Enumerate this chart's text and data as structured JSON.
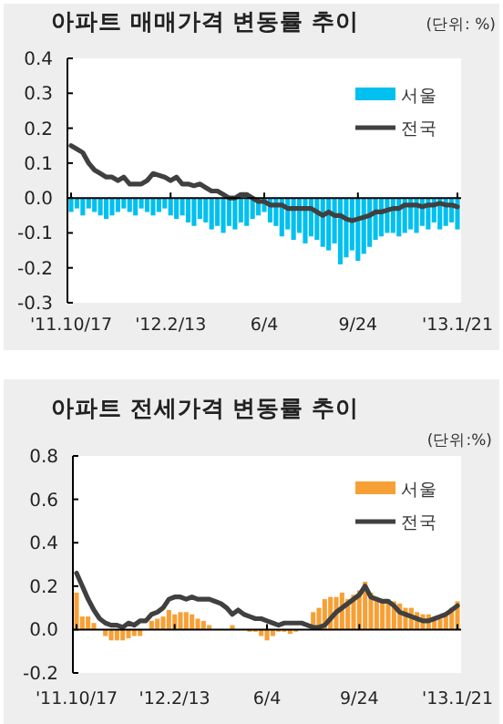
{
  "chart_data": [
    {
      "type": "bar",
      "title": "아파트 매매가격 변동률 추이",
      "annotations": [
        "(단위: %)"
      ],
      "categories": [
        "'11.10/17",
        null,
        null,
        null,
        null,
        null,
        null,
        null,
        null,
        null,
        null,
        null,
        null,
        null,
        null,
        null,
        null,
        "'12.2/13",
        null,
        null,
        null,
        null,
        null,
        null,
        null,
        null,
        null,
        null,
        null,
        null,
        null,
        null,
        null,
        "6/4",
        null,
        null,
        null,
        null,
        null,
        null,
        null,
        null,
        null,
        null,
        null,
        null,
        null,
        null,
        null,
        "9/24",
        null,
        null,
        null,
        null,
        null,
        null,
        null,
        null,
        null,
        null,
        null,
        null,
        null,
        null,
        null,
        null,
        "'13.1/21"
      ],
      "series": [
        {
          "name": "서울",
          "color": "#00c0f0",
          "values": [
            -0.04,
            -0.03,
            -0.05,
            -0.03,
            -0.04,
            -0.05,
            -0.06,
            -0.05,
            -0.04,
            -0.03,
            -0.04,
            -0.05,
            -0.03,
            -0.04,
            -0.05,
            -0.04,
            -0.03,
            -0.05,
            -0.06,
            -0.05,
            -0.07,
            -0.08,
            -0.06,
            -0.07,
            -0.09,
            -0.08,
            -0.1,
            -0.08,
            -0.09,
            -0.07,
            -0.08,
            -0.06,
            -0.05,
            -0.04,
            -0.07,
            -0.08,
            -0.11,
            -0.09,
            -0.12,
            -0.1,
            -0.13,
            -0.11,
            -0.12,
            -0.14,
            -0.15,
            -0.13,
            -0.19,
            -0.17,
            -0.15,
            -0.18,
            -0.16,
            -0.14,
            -0.12,
            -0.11,
            -0.1,
            -0.1,
            -0.11,
            -0.1,
            -0.09,
            -0.1,
            -0.08,
            -0.09,
            -0.07,
            -0.09,
            -0.08,
            -0.07,
            -0.09
          ]
        },
        {
          "name": "전국",
          "type": "line",
          "color": "#404040",
          "values": [
            0.15,
            0.14,
            0.13,
            0.1,
            0.08,
            0.07,
            0.06,
            0.06,
            0.05,
            0.06,
            0.04,
            0.04,
            0.04,
            0.05,
            0.07,
            0.065,
            0.06,
            0.05,
            0.06,
            0.04,
            0.04,
            0.035,
            0.04,
            0.03,
            0.02,
            0.02,
            0.01,
            0.0,
            0.0,
            0.01,
            0.01,
            0.0,
            -0.01,
            -0.01,
            -0.02,
            -0.02,
            -0.02,
            -0.03,
            -0.03,
            -0.03,
            -0.03,
            -0.03,
            -0.04,
            -0.05,
            -0.04,
            -0.05,
            -0.05,
            -0.06,
            -0.065,
            -0.06,
            -0.055,
            -0.05,
            -0.04,
            -0.04,
            -0.035,
            -0.03,
            -0.03,
            -0.02,
            -0.02,
            -0.02,
            -0.025,
            -0.02,
            -0.02,
            -0.015,
            -0.02,
            -0.02,
            -0.025
          ]
        }
      ],
      "ylim": [
        -0.3,
        0.4
      ],
      "yticks": [
        {
          "value": 0.4,
          "label": "0.4"
        },
        {
          "value": 0.3,
          "label": "0.3"
        },
        {
          "value": 0.2,
          "label": "0.2"
        },
        {
          "value": 0.1,
          "label": "0.1"
        },
        {
          "value": 0,
          "label": "0.0"
        },
        {
          "value": -0.1,
          "label": "-0.1"
        },
        {
          "value": -0.2,
          "label": "-0.2"
        },
        {
          "value": -0.3,
          "label": "-0.3"
        }
      ],
      "legend": "top right",
      "line_style": "solid"
    },
    {
      "type": "bar",
      "title": "아파트 전세가격 변동률 추이",
      "annotations": [
        "(단위:%)"
      ],
      "categories": [
        "'11.10/17",
        null,
        null,
        null,
        null,
        null,
        null,
        null,
        null,
        null,
        null,
        null,
        null,
        null,
        null,
        null,
        null,
        "'12.2/13",
        null,
        null,
        null,
        null,
        null,
        null,
        null,
        null,
        null,
        null,
        null,
        null,
        null,
        null,
        null,
        "6/4",
        null,
        null,
        null,
        null,
        null,
        null,
        null,
        null,
        null,
        null,
        null,
        null,
        null,
        null,
        null,
        "9/24",
        null,
        null,
        null,
        null,
        null,
        null,
        null,
        null,
        null,
        null,
        null,
        null,
        null,
        null,
        null,
        null,
        "'13.1/21"
      ],
      "series": [
        {
          "name": "서울",
          "color": "#f7a035",
          "values": [
            0.17,
            0.06,
            0.06,
            0.03,
            0.0,
            -0.03,
            -0.05,
            -0.05,
            -0.05,
            -0.04,
            -0.03,
            -0.03,
            0.0,
            0.04,
            0.05,
            0.06,
            0.09,
            0.07,
            0.08,
            0.08,
            0.07,
            0.05,
            0.04,
            0.02,
            null,
            0.0,
            null,
            0.02,
            0.0,
            0.0,
            -0.01,
            -0.01,
            -0.03,
            -0.05,
            -0.03,
            -0.01,
            -0.01,
            -0.02,
            -0.01,
            0.0,
            null,
            0.08,
            0.1,
            0.14,
            0.15,
            0.15,
            0.17,
            0.14,
            0.16,
            0.18,
            0.22,
            0.17,
            0.15,
            0.14,
            0.14,
            0.13,
            0.12,
            0.1,
            0.1,
            0.08,
            0.07,
            0.07,
            0.05,
            0.05,
            0.06,
            0.1,
            0.13
          ]
        },
        {
          "name": "전국",
          "type": "line",
          "color": "#404040",
          "values": [
            0.26,
            0.2,
            0.14,
            0.09,
            0.05,
            0.03,
            0.02,
            0.02,
            0.01,
            0.03,
            0.02,
            0.04,
            0.04,
            0.07,
            0.08,
            0.1,
            0.14,
            0.15,
            0.15,
            0.14,
            0.15,
            0.14,
            0.14,
            0.14,
            0.13,
            0.12,
            0.1,
            0.07,
            0.09,
            0.07,
            0.06,
            0.05,
            0.05,
            0.04,
            0.03,
            0.02,
            0.03,
            0.03,
            0.03,
            0.03,
            0.02,
            0.01,
            0.01,
            0.02,
            0.05,
            0.08,
            0.1,
            0.12,
            0.14,
            0.16,
            0.2,
            0.15,
            0.14,
            0.13,
            0.13,
            0.11,
            0.08,
            0.07,
            0.06,
            0.05,
            0.04,
            0.04,
            0.05,
            0.06,
            0.07,
            0.09,
            0.11
          ]
        }
      ],
      "ylim": [
        -0.2,
        0.8
      ],
      "yticks": [
        {
          "value": 0.8,
          "label": "0.8"
        },
        {
          "value": 0.6,
          "label": "0.6"
        },
        {
          "value": 0.4,
          "label": "0.4"
        },
        {
          "value": 0.2,
          "label": "0.2"
        },
        {
          "value": 0,
          "label": "0.0"
        },
        {
          "value": -0.2,
          "label": "-0.2"
        }
      ],
      "legend": "top right",
      "line_style": "solid"
    }
  ]
}
